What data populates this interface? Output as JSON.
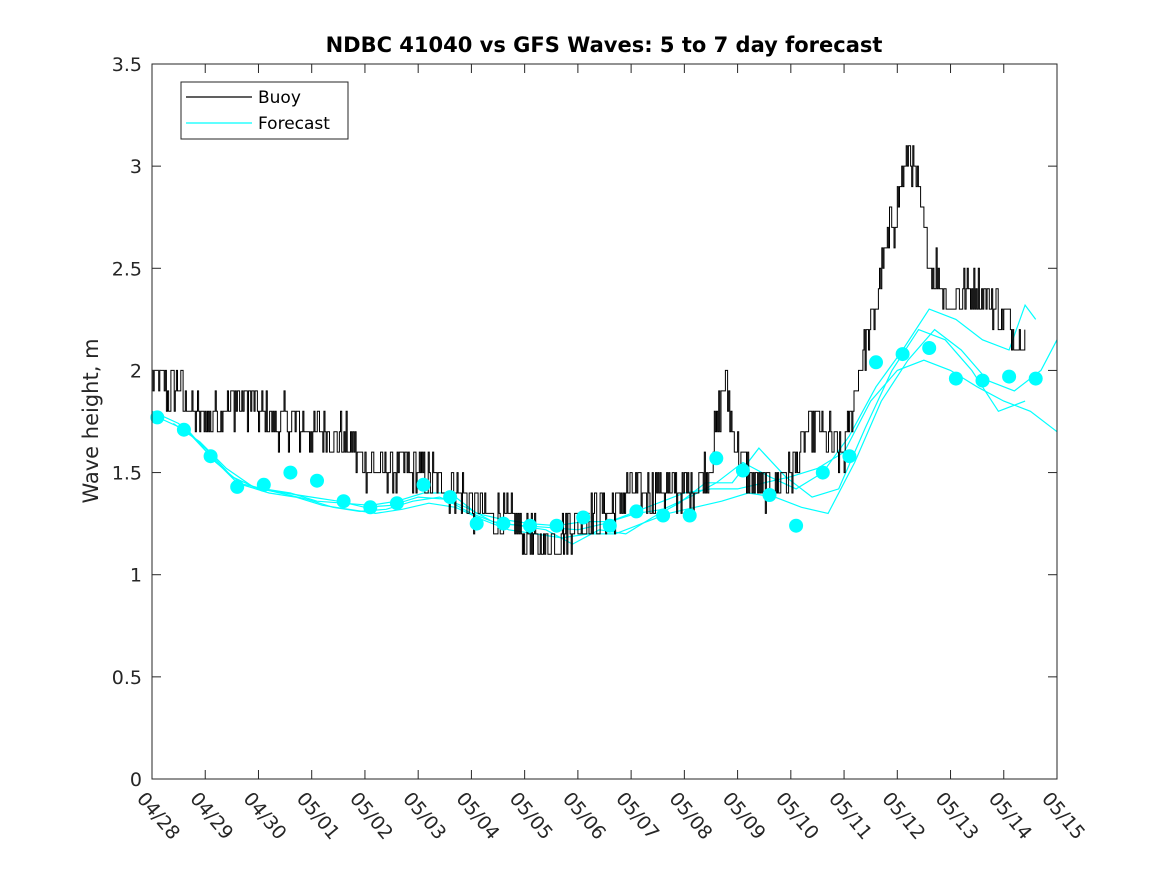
{
  "chart_data": {
    "type": "line",
    "title": "NDBC 41040 vs GFS Waves: 5 to 7 day forecast",
    "xlabel": "",
    "ylabel": "Wave height, m",
    "x_ticks": [
      "04/28",
      "04/29",
      "04/30",
      "05/01",
      "05/02",
      "05/03",
      "05/04",
      "05/05",
      "05/06",
      "05/07",
      "05/08",
      "05/09",
      "05/10",
      "05/11",
      "05/12",
      "05/13",
      "05/14",
      "05/15"
    ],
    "y_ticks": [
      "0",
      "0.5",
      "1",
      "1.5",
      "2",
      "2.5",
      "3",
      "3.5"
    ],
    "xlim": [
      0,
      17
    ],
    "ylim": [
      0,
      3.5
    ],
    "x_units": "days since 04/28",
    "grid": false,
    "legend": {
      "position": "top-left",
      "entries": [
        "Buoy",
        "Forecast"
      ]
    },
    "colors": {
      "buoy": "#000000",
      "forecast": "#00FFFF",
      "markers": "#00FFFF"
    },
    "series": [
      {
        "name": "Buoy",
        "color": "#000000",
        "anchors": [
          [
            0.0,
            1.95
          ],
          [
            0.25,
            1.9
          ],
          [
            0.5,
            1.9
          ],
          [
            0.75,
            1.8
          ],
          [
            1.0,
            1.75
          ],
          [
            1.3,
            1.8
          ],
          [
            1.5,
            1.85
          ],
          [
            1.75,
            1.85
          ],
          [
            2.0,
            1.8
          ],
          [
            2.3,
            1.75
          ],
          [
            2.5,
            1.75
          ],
          [
            2.75,
            1.72
          ],
          [
            3.0,
            1.7
          ],
          [
            3.25,
            1.7
          ],
          [
            3.5,
            1.68
          ],
          [
            3.75,
            1.62
          ],
          [
            4.0,
            1.55
          ],
          [
            4.25,
            1.52
          ],
          [
            4.5,
            1.5
          ],
          [
            4.75,
            1.52
          ],
          [
            5.0,
            1.5
          ],
          [
            5.25,
            1.48
          ],
          [
            5.5,
            1.45
          ],
          [
            5.75,
            1.42
          ],
          [
            6.0,
            1.35
          ],
          [
            6.25,
            1.3
          ],
          [
            6.5,
            1.28
          ],
          [
            6.75,
            1.25
          ],
          [
            7.0,
            1.18
          ],
          [
            7.25,
            1.15
          ],
          [
            7.5,
            1.18
          ],
          [
            7.75,
            1.22
          ],
          [
            8.0,
            1.25
          ],
          [
            8.25,
            1.28
          ],
          [
            8.5,
            1.3
          ],
          [
            8.75,
            1.35
          ],
          [
            9.0,
            1.4
          ],
          [
            9.25,
            1.4
          ],
          [
            9.5,
            1.42
          ],
          [
            9.75,
            1.4
          ],
          [
            10.0,
            1.42
          ],
          [
            10.25,
            1.45
          ],
          [
            10.5,
            1.55
          ],
          [
            10.75,
            1.95
          ],
          [
            11.0,
            1.6
          ],
          [
            11.25,
            1.45
          ],
          [
            11.5,
            1.4
          ],
          [
            11.75,
            1.45
          ],
          [
            12.0,
            1.5
          ],
          [
            12.25,
            1.65
          ],
          [
            12.5,
            1.75
          ],
          [
            12.75,
            1.65
          ],
          [
            13.0,
            1.6
          ],
          [
            13.25,
            1.95
          ],
          [
            13.5,
            2.2
          ],
          [
            13.75,
            2.55
          ],
          [
            14.0,
            2.8
          ],
          [
            14.2,
            3.1
          ],
          [
            14.4,
            2.85
          ],
          [
            14.6,
            2.55
          ],
          [
            14.8,
            2.45
          ],
          [
            15.0,
            2.3
          ],
          [
            15.25,
            2.4
          ],
          [
            15.5,
            2.4
          ],
          [
            15.75,
            2.35
          ],
          [
            16.0,
            2.25
          ],
          [
            16.25,
            2.15
          ],
          [
            16.4,
            2.2
          ]
        ]
      },
      {
        "name": "Forecast",
        "color": "#00FFFF",
        "points": [
          [
            0.1,
            1.77
          ],
          [
            0.6,
            1.71
          ],
          [
            1.1,
            1.58
          ],
          [
            1.6,
            1.43
          ],
          [
            2.1,
            1.44
          ],
          [
            2.6,
            1.5
          ],
          [
            3.1,
            1.46
          ],
          [
            3.6,
            1.36
          ],
          [
            4.1,
            1.33
          ],
          [
            4.6,
            1.35
          ],
          [
            5.1,
            1.44
          ],
          [
            5.6,
            1.38
          ],
          [
            6.1,
            1.25
          ],
          [
            6.6,
            1.25
          ],
          [
            7.1,
            1.24
          ],
          [
            7.6,
            1.24
          ],
          [
            8.1,
            1.28
          ],
          [
            8.6,
            1.24
          ],
          [
            9.1,
            1.31
          ],
          [
            9.6,
            1.29
          ],
          [
            10.1,
            1.29
          ],
          [
            10.6,
            1.57
          ],
          [
            11.1,
            1.51
          ],
          [
            11.6,
            1.39
          ],
          [
            12.1,
            1.24
          ],
          [
            12.6,
            1.5
          ],
          [
            13.1,
            1.58
          ],
          [
            13.6,
            2.04
          ],
          [
            14.1,
            2.08
          ],
          [
            14.6,
            2.11
          ],
          [
            15.1,
            1.96
          ],
          [
            15.6,
            1.95
          ],
          [
            16.1,
            1.97
          ],
          [
            16.6,
            1.96
          ]
        ]
      }
    ],
    "forecast_runs": [
      [
        [
          0.0,
          1.8
        ],
        [
          0.5,
          1.74
        ],
        [
          1.0,
          1.62
        ],
        [
          1.5,
          1.48
        ],
        [
          2.0,
          1.42
        ],
        [
          2.5,
          1.4
        ],
        [
          3.0,
          1.38
        ],
        [
          3.5,
          1.36
        ],
        [
          4.0,
          1.33
        ],
        [
          4.5,
          1.34
        ],
        [
          5.0,
          1.38
        ],
        [
          5.5,
          1.37
        ],
        [
          6.0,
          1.3
        ],
        [
          6.5,
          1.25
        ],
        [
          7.0,
          1.24
        ],
        [
          7.5,
          1.23
        ],
        [
          8.0,
          1.22
        ],
        [
          8.5,
          1.25
        ],
        [
          9.0,
          1.3
        ],
        [
          9.5,
          1.35
        ],
        [
          10.0,
          1.4
        ],
        [
          10.5,
          1.42
        ],
        [
          11.0,
          1.42
        ],
        [
          11.5,
          1.45
        ],
        [
          12.0,
          1.48
        ],
        [
          12.5,
          1.52
        ],
        [
          13.0,
          1.6
        ],
        [
          13.5,
          1.85
        ],
        [
          14.0,
          2.0
        ],
        [
          14.5,
          2.05
        ],
        [
          15.0,
          2.0
        ],
        [
          15.5,
          1.92
        ],
        [
          16.0,
          1.85
        ],
        [
          16.5,
          1.8
        ],
        [
          17.0,
          1.7
        ]
      ],
      [
        [
          0.2,
          1.76
        ],
        [
          0.7,
          1.7
        ],
        [
          1.2,
          1.55
        ],
        [
          1.7,
          1.44
        ],
        [
          2.2,
          1.4
        ],
        [
          2.7,
          1.38
        ],
        [
          3.2,
          1.34
        ],
        [
          3.7,
          1.32
        ],
        [
          4.2,
          1.3
        ],
        [
          4.7,
          1.32
        ],
        [
          5.2,
          1.35
        ],
        [
          5.7,
          1.33
        ],
        [
          6.2,
          1.27
        ],
        [
          6.7,
          1.22
        ],
        [
          7.2,
          1.2
        ],
        [
          7.7,
          1.18
        ],
        [
          8.2,
          1.2
        ],
        [
          8.7,
          1.2
        ],
        [
          9.2,
          1.25
        ],
        [
          9.7,
          1.3
        ],
        [
          10.2,
          1.33
        ],
        [
          10.7,
          1.36
        ],
        [
          11.2,
          1.4
        ],
        [
          11.7,
          1.38
        ],
        [
          12.2,
          1.33
        ],
        [
          12.7,
          1.3
        ],
        [
          13.2,
          1.55
        ],
        [
          13.7,
          1.85
        ],
        [
          14.2,
          2.05
        ],
        [
          14.7,
          2.2
        ],
        [
          15.2,
          2.1
        ],
        [
          15.7,
          1.95
        ],
        [
          16.2,
          1.9
        ],
        [
          16.7,
          2.0
        ],
        [
          17.0,
          2.15
        ]
      ],
      [
        [
          0.4,
          1.74
        ],
        [
          0.9,
          1.65
        ],
        [
          1.4,
          1.52
        ],
        [
          1.9,
          1.43
        ],
        [
          2.4,
          1.4
        ],
        [
          2.9,
          1.37
        ],
        [
          3.4,
          1.33
        ],
        [
          3.9,
          1.31
        ],
        [
          4.4,
          1.32
        ],
        [
          4.9,
          1.36
        ],
        [
          5.4,
          1.38
        ],
        [
          5.9,
          1.33
        ],
        [
          6.4,
          1.26
        ],
        [
          6.9,
          1.24
        ],
        [
          7.4,
          1.22
        ],
        [
          7.9,
          1.15
        ],
        [
          8.4,
          1.22
        ],
        [
          8.9,
          1.2
        ],
        [
          9.4,
          1.28
        ],
        [
          9.9,
          1.35
        ],
        [
          10.4,
          1.45
        ],
        [
          10.9,
          1.45
        ],
        [
          11.4,
          1.62
        ],
        [
          11.9,
          1.48
        ],
        [
          12.4,
          1.38
        ],
        [
          12.9,
          1.42
        ],
        [
          13.4,
          1.72
        ],
        [
          13.9,
          2.0
        ],
        [
          14.4,
          2.2
        ],
        [
          14.9,
          2.15
        ],
        [
          15.4,
          2.0
        ],
        [
          15.9,
          1.8
        ],
        [
          16.4,
          1.85
        ]
      ],
      [
        [
          0.6,
          1.72
        ],
        [
          1.1,
          1.58
        ],
        [
          1.6,
          1.45
        ],
        [
          2.1,
          1.42
        ],
        [
          2.6,
          1.4
        ],
        [
          3.1,
          1.36
        ],
        [
          3.6,
          1.35
        ],
        [
          4.1,
          1.34
        ],
        [
          4.6,
          1.36
        ],
        [
          5.1,
          1.4
        ],
        [
          5.6,
          1.4
        ],
        [
          6.1,
          1.3
        ],
        [
          6.6,
          1.27
        ],
        [
          7.1,
          1.25
        ],
        [
          7.6,
          1.24
        ],
        [
          8.1,
          1.26
        ],
        [
          8.6,
          1.26
        ],
        [
          9.1,
          1.3
        ],
        [
          9.6,
          1.32
        ],
        [
          10.1,
          1.38
        ],
        [
          10.6,
          1.45
        ],
        [
          11.1,
          1.55
        ],
        [
          11.6,
          1.48
        ],
        [
          12.1,
          1.42
        ],
        [
          12.6,
          1.5
        ],
        [
          13.1,
          1.68
        ],
        [
          13.6,
          1.92
        ],
        [
          14.1,
          2.1
        ],
        [
          14.6,
          2.3
        ],
        [
          15.1,
          2.25
        ],
        [
          15.6,
          2.15
        ],
        [
          16.1,
          2.1
        ],
        [
          16.4,
          2.32
        ],
        [
          16.6,
          2.25
        ]
      ]
    ]
  },
  "legend": {
    "buoy_label": "Buoy",
    "forecast_label": "Forecast"
  }
}
